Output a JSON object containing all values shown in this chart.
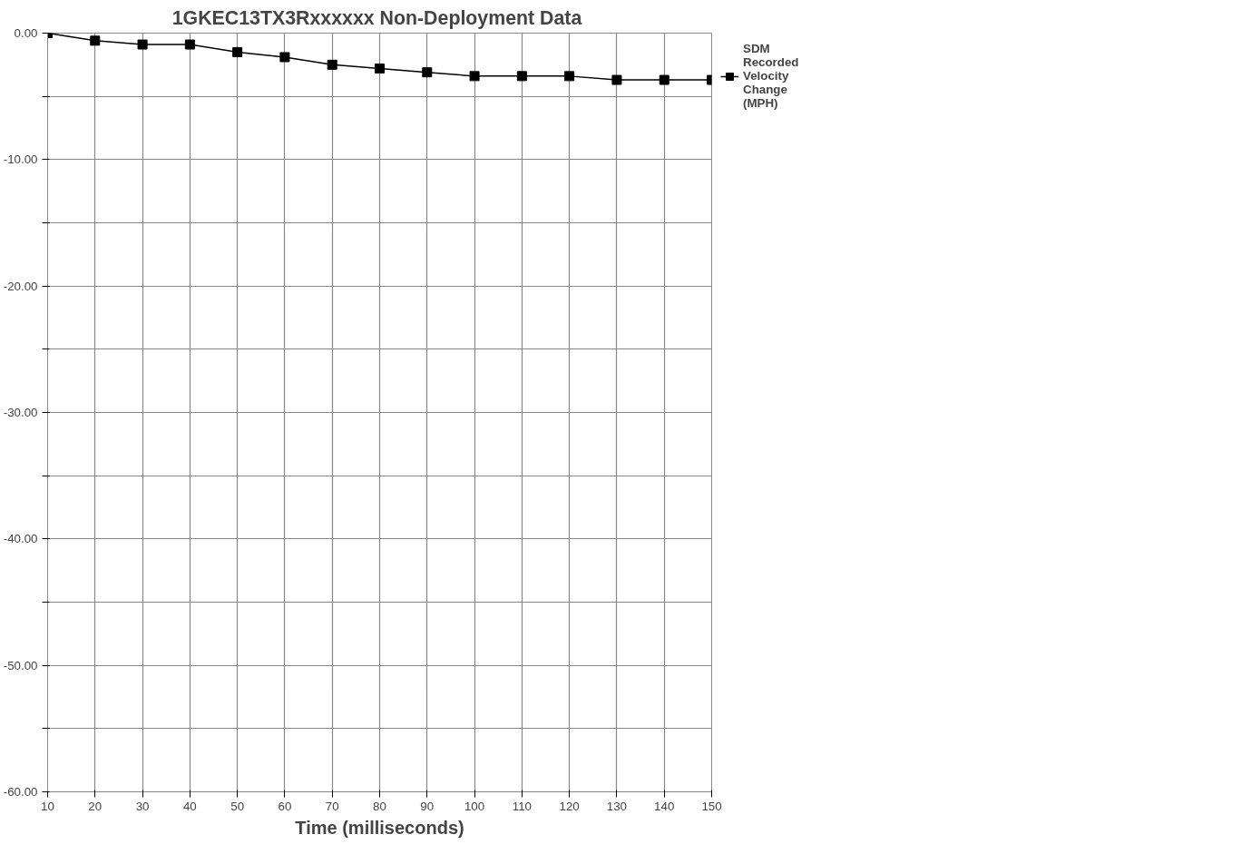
{
  "chart_data": {
    "type": "line",
    "title": "1GKEC13TX3Rxxxxxx  Non-Deployment Data",
    "xlabel": "Time (milliseconds)",
    "x": [
      10,
      20,
      30,
      40,
      50,
      60,
      70,
      80,
      90,
      100,
      110,
      120,
      130,
      140,
      150
    ],
    "series": [
      {
        "name": "SDM Recorded Velocity Change (MPH)",
        "color": "#000000",
        "values": [
          0,
          -0.6,
          -0.9,
          -0.9,
          -1.5,
          -1.9,
          -2.5,
          -2.8,
          -3.1,
          -3.4,
          -3.4,
          -3.4,
          -3.7,
          -3.7,
          -3.7
        ]
      }
    ],
    "xlim": [
      10,
      150
    ],
    "xticks": [
      10,
      20,
      30,
      40,
      50,
      60,
      70,
      80,
      90,
      100,
      110,
      120,
      130,
      140,
      150
    ],
    "ylim": [
      -60,
      0
    ],
    "yticks": [
      {
        "value": 0,
        "label": "0.00"
      },
      {
        "value": -5,
        "label": null
      },
      {
        "value": -10,
        "label": "-10.00"
      },
      {
        "value": -15,
        "label": null
      },
      {
        "value": -20,
        "label": "-20.00"
      },
      {
        "value": -25,
        "label": null
      },
      {
        "value": -30,
        "label": "-30.00"
      },
      {
        "value": -35,
        "label": null
      },
      {
        "value": -40,
        "label": "-40.00"
      },
      {
        "value": -45,
        "label": null
      },
      {
        "value": -50,
        "label": "-50.00"
      },
      {
        "value": -55,
        "label": null
      },
      {
        "value": -60,
        "label": "-60.00"
      }
    ],
    "grid": true,
    "legend": "top right",
    "marker": "square",
    "line_style": "solid"
  }
}
